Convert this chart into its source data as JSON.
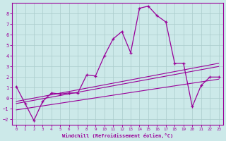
{
  "xlabel": "Windchill (Refroidissement éolien,°C)",
  "xlim": [
    -0.5,
    23.5
  ],
  "ylim": [
    -2.5,
    9.0
  ],
  "yticks": [
    -2,
    -1,
    0,
    1,
    2,
    3,
    4,
    5,
    6,
    7,
    8
  ],
  "xticks": [
    0,
    1,
    2,
    3,
    4,
    5,
    6,
    7,
    8,
    9,
    10,
    11,
    12,
    13,
    14,
    15,
    16,
    17,
    18,
    19,
    20,
    21,
    22,
    23
  ],
  "bg_color": "#cce9e9",
  "line_color": "#990099",
  "grid_color": "#aacccc",
  "line1_x": [
    0,
    1,
    2,
    3,
    4,
    5,
    6,
    7,
    8,
    9,
    10,
    11,
    12,
    13,
    14,
    15,
    16,
    17,
    18,
    19,
    20,
    21,
    22,
    23
  ],
  "line1_y": [
    1.1,
    -0.5,
    -2.1,
    -0.3,
    0.5,
    0.4,
    0.5,
    0.5,
    2.2,
    2.1,
    4.0,
    5.6,
    6.3,
    4.3,
    8.5,
    8.7,
    7.8,
    7.2,
    3.3,
    3.3,
    -0.8,
    1.2,
    2.0,
    2.0
  ],
  "line2_x": [
    0,
    23
  ],
  "line2_y": [
    -0.3,
    3.3
  ],
  "line3_x": [
    0,
    23
  ],
  "line3_y": [
    -0.5,
    3.0
  ],
  "line4_x": [
    0,
    23
  ],
  "line4_y": [
    -1.1,
    1.8
  ]
}
